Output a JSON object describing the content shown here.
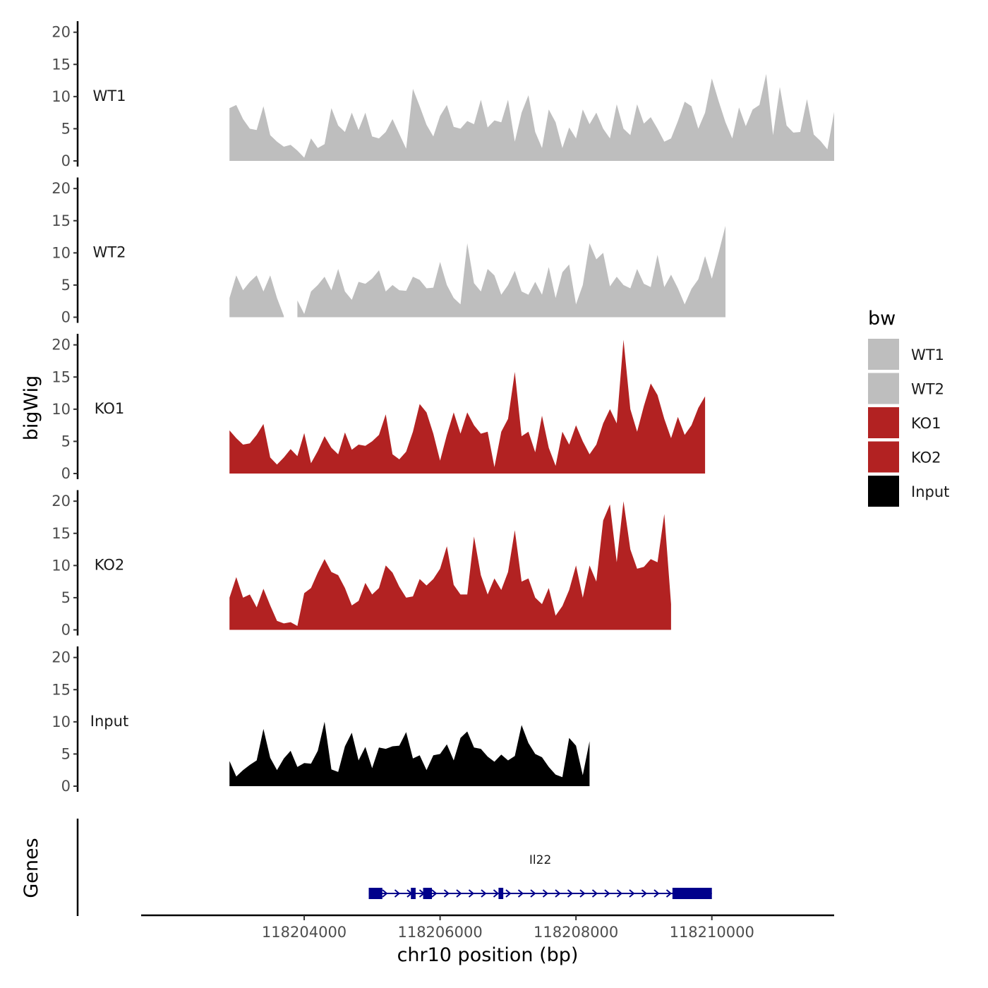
{
  "chart_data": {
    "type": "area",
    "title": "",
    "chromosome": "chr10",
    "xlabel": "chr10 position (bp)",
    "ylabel": "bigWig",
    "genes_label": "Genes",
    "xlim": [
      118201600,
      118211800
    ],
    "region": [
      118202900,
      118210000
    ],
    "x_ticks": [
      118204000,
      118206000,
      118208000,
      118210000
    ],
    "x_tick_labels": [
      "118204000",
      "118206000",
      "118208000",
      "118210000"
    ],
    "ylim": [
      0,
      21.5
    ],
    "y_ticks": [
      0,
      5,
      10,
      15,
      20
    ],
    "y_tick_labels": [
      "0",
      "5",
      "10",
      "15",
      "20"
    ],
    "legend": {
      "title": "bw",
      "position": "right",
      "entries": [
        {
          "label": "WT1",
          "color": "#bebebe"
        },
        {
          "label": "WT2",
          "color": "#bebebe"
        },
        {
          "label": "KO1",
          "color": "#b22222"
        },
        {
          "label": "KO2",
          "color": "#b22222"
        },
        {
          "label": "Input",
          "color": "#000000"
        }
      ]
    },
    "series": [
      {
        "name": "WT1",
        "color": "#bebebe",
        "x_start": 118202900,
        "x_step": 100,
        "values": [
          8.2,
          8.7,
          6.5,
          5.0,
          4.8,
          8.5,
          4.0,
          3.0,
          2.2,
          2.5,
          1.6,
          0.5,
          3.5,
          2.0,
          2.6,
          8.2,
          5.5,
          4.5,
          7.5,
          4.8,
          7.5,
          3.8,
          3.5,
          4.5,
          6.5,
          4.2,
          1.9,
          11.2,
          8.5,
          5.6,
          3.8,
          7.0,
          8.7,
          5.3,
          5.0,
          6.2,
          5.7,
          9.5,
          5.2,
          6.3,
          6.0,
          9.5,
          3.0,
          7.5,
          10.2,
          4.5,
          2.0,
          8.0,
          6.0,
          2.0,
          5.2,
          3.5,
          8.0,
          5.7,
          7.5,
          5.0,
          3.5,
          8.8,
          5.0,
          4.0,
          8.8,
          5.8,
          6.8,
          5.0,
          3.0,
          3.5,
          6.2,
          9.2,
          8.5,
          5.0,
          7.5,
          12.8,
          9.3,
          6.0,
          3.5,
          8.3,
          5.4,
          8.0,
          8.7,
          13.5,
          4.0,
          11.5,
          5.5,
          4.4,
          4.5,
          9.6,
          4.1,
          3.1,
          1.8,
          7.6
        ]
      },
      {
        "name": "WT2",
        "color": "#bebebe",
        "x_start": 118202900,
        "x_step": 100,
        "values": [
          3.0,
          6.5,
          4.2,
          5.5,
          6.5,
          4.0,
          6.5,
          3.0,
          0.2,
          null,
          2.6,
          0.5,
          4.0,
          5.0,
          6.3,
          4.2,
          7.5,
          4.0,
          2.7,
          5.5,
          5.2,
          6.0,
          7.3,
          4.0,
          5.0,
          4.2,
          4.1,
          6.3,
          5.8,
          4.5,
          4.6,
          8.6,
          5.0,
          3.0,
          2.0,
          11.5,
          5.3,
          4.0,
          7.5,
          6.5,
          3.5,
          5.0,
          7.2,
          4.0,
          3.5,
          5.5,
          3.5,
          7.8,
          3.0,
          7.0,
          8.2,
          2.0,
          5.0,
          11.5,
          9.0,
          10.0,
          4.8,
          6.3,
          5.0,
          4.5,
          7.5,
          5.2,
          4.7,
          9.7,
          4.7,
          6.6,
          4.5,
          2.0,
          4.4,
          5.9,
          9.5,
          6.0,
          10.0,
          14.2
        ]
      },
      {
        "name": "KO1",
        "color": "#b22222",
        "x_start": 118202900,
        "x_step": 100,
        "values": [
          6.7,
          5.5,
          4.5,
          4.7,
          6.0,
          7.7,
          2.5,
          1.4,
          2.5,
          3.8,
          2.7,
          6.3,
          1.6,
          3.5,
          5.8,
          4.0,
          3.0,
          6.4,
          3.7,
          4.5,
          4.3,
          5.0,
          6.0,
          9.2,
          3.0,
          2.2,
          3.4,
          6.5,
          10.8,
          9.5,
          6.2,
          2.0,
          6.0,
          9.5,
          6.2,
          9.5,
          7.5,
          6.2,
          6.5,
          1.0,
          6.5,
          8.5,
          15.8,
          5.8,
          6.5,
          3.3,
          9.0,
          4.0,
          1.2,
          6.5,
          4.5,
          7.5,
          5.0,
          3.0,
          4.5,
          7.8,
          10.0,
          7.8,
          20.8,
          10.0,
          6.5,
          10.5,
          14.0,
          12.2,
          8.5,
          5.5,
          8.8,
          6.0,
          7.5,
          10.2,
          12.0
        ]
      },
      {
        "name": "KO2",
        "color": "#b22222",
        "x_start": 118202900,
        "x_step": 100,
        "values": [
          5.0,
          8.2,
          5.0,
          5.5,
          3.5,
          6.4,
          3.8,
          1.4,
          1.0,
          1.2,
          0.6,
          5.7,
          6.5,
          8.9,
          11.0,
          9.0,
          8.5,
          6.5,
          3.8,
          4.5,
          7.3,
          5.5,
          6.5,
          10.0,
          8.9,
          6.7,
          5.0,
          5.2,
          7.9,
          6.9,
          7.9,
          9.5,
          13.0,
          7.0,
          5.5,
          5.5,
          14.5,
          8.5,
          5.5,
          8.0,
          6.2,
          9.0,
          15.5,
          7.5,
          8.0,
          5.0,
          4.0,
          6.5,
          2.2,
          3.7,
          6.2,
          10.0,
          5.0,
          10.0,
          7.5,
          17.0,
          19.5,
          10.5,
          20.0,
          12.5,
          9.5,
          9.8,
          11.0,
          10.5,
          18.0,
          4.0
        ]
      },
      {
        "name": "Input",
        "color": "#000000",
        "x_start": 118202900,
        "x_step": 100,
        "values": [
          3.9,
          1.5,
          2.5,
          3.3,
          4.0,
          8.9,
          4.4,
          2.5,
          4.3,
          5.5,
          3.0,
          3.6,
          3.5,
          5.5,
          10.0,
          2.6,
          2.2,
          6.2,
          8.3,
          4.0,
          6.1,
          2.8,
          6.0,
          5.8,
          6.2,
          6.3,
          8.4,
          4.3,
          4.8,
          2.5,
          4.8,
          5.0,
          6.5,
          4.0,
          7.5,
          8.5,
          6.0,
          5.8,
          4.6,
          3.8,
          4.9,
          4.0,
          4.7,
          9.5,
          6.7,
          5.0,
          4.5,
          3.0,
          1.8,
          1.4,
          7.5,
          6.3,
          1.7,
          7.0
        ]
      }
    ],
    "genes": [
      {
        "name": "Il22",
        "strand": "+",
        "start": 118204950,
        "end": 118210000,
        "exons": [
          [
            118204950,
            118205150
          ],
          [
            118205570,
            118205640
          ],
          [
            118205750,
            118205880
          ],
          [
            118206860,
            118206930
          ],
          [
            118209420,
            118210000
          ]
        ]
      }
    ]
  }
}
